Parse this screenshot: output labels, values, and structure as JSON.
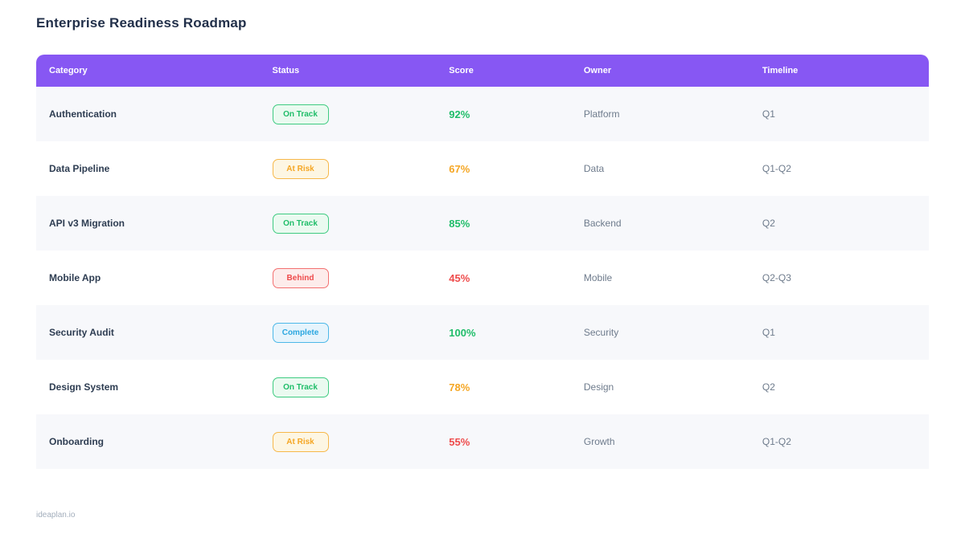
{
  "page": {
    "title": "Enterprise Readiness Roadmap",
    "footer": "ideaplan.io"
  },
  "colors": {
    "purple": "#8757f3",
    "green": "#1fbd69",
    "green_bg": "#eafaf0",
    "green_border": "#3ecb81",
    "amber": "#f5a623",
    "amber_bg": "#fdf6e3",
    "amber_border": "#f7b84a",
    "red": "#ee4b4b",
    "red_bg": "#fdeceb",
    "red_border": "#f37070",
    "blue": "#2ba7e0",
    "blue_bg": "#e6f4fc",
    "blue_border": "#4cb8e8",
    "row_alt": "#f7f8fb",
    "text_title": "#22304a",
    "text_dark": "#2e3d52",
    "text_muted": "#6e7b8c",
    "text_watermark": "#a3aebc"
  },
  "chart_data": {
    "type": "table",
    "title": "Enterprise Readiness Roadmap",
    "columns": [
      "Category",
      "Status",
      "Score",
      "Owner",
      "Timeline"
    ],
    "rows": [
      {
        "category": "Authentication",
        "status": "On Track",
        "status_type": "on-track",
        "score": "92%",
        "score_color": "green",
        "owner": "Platform",
        "timeline": "Q1"
      },
      {
        "category": "Data Pipeline",
        "status": "At Risk",
        "status_type": "at-risk",
        "score": "67%",
        "score_color": "amber",
        "owner": "Data",
        "timeline": "Q1-Q2"
      },
      {
        "category": "API v3 Migration",
        "status": "On Track",
        "status_type": "on-track",
        "score": "85%",
        "score_color": "green",
        "owner": "Backend",
        "timeline": "Q2"
      },
      {
        "category": "Mobile App",
        "status": "Behind",
        "status_type": "behind",
        "score": "45%",
        "score_color": "red",
        "owner": "Mobile",
        "timeline": "Q2-Q3"
      },
      {
        "category": "Security Audit",
        "status": "Complete",
        "status_type": "complete",
        "score": "100%",
        "score_color": "green",
        "owner": "Security",
        "timeline": "Q1"
      },
      {
        "category": "Design System",
        "status": "On Track",
        "status_type": "on-track",
        "score": "78%",
        "score_color": "amber",
        "owner": "Design",
        "timeline": "Q2"
      },
      {
        "category": "Onboarding",
        "status": "At Risk",
        "status_type": "at-risk",
        "score": "55%",
        "score_color": "red",
        "owner": "Growth",
        "timeline": "Q1-Q2"
      }
    ]
  }
}
